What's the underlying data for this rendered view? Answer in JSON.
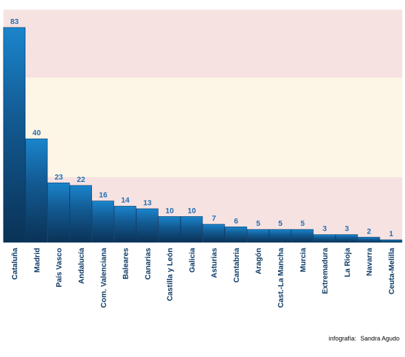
{
  "chart_data": {
    "type": "bar",
    "categories": [
      "Cataluña",
      "Madrid",
      "País Vasco",
      "Andalucía",
      "Com. Valenciana",
      "Baleares",
      "Canarias",
      "Castilla y León",
      "Galicia",
      "Asturias",
      "Cantabria",
      "Aragón",
      "Cast.-La Mancha",
      "Murcia",
      "Extremadura",
      "La Rioja",
      "Navarra",
      "Ceuta-Melilla"
    ],
    "values": [
      83,
      40,
      23,
      22,
      16,
      14,
      13,
      10,
      10,
      7,
      6,
      5,
      5,
      5,
      3,
      3,
      2,
      1
    ],
    "ylim": [
      0,
      83
    ],
    "background_bands": [
      "#f7e2e2",
      "#fdf5e6",
      "#f7e2e2"
    ],
    "colors": {
      "bar_dark": "#0d3b66",
      "bar_light": "#1a82c8",
      "label": "#1f6fb2"
    }
  },
  "credit": {
    "label": "infografía:",
    "author": "Sandra Agudo"
  }
}
